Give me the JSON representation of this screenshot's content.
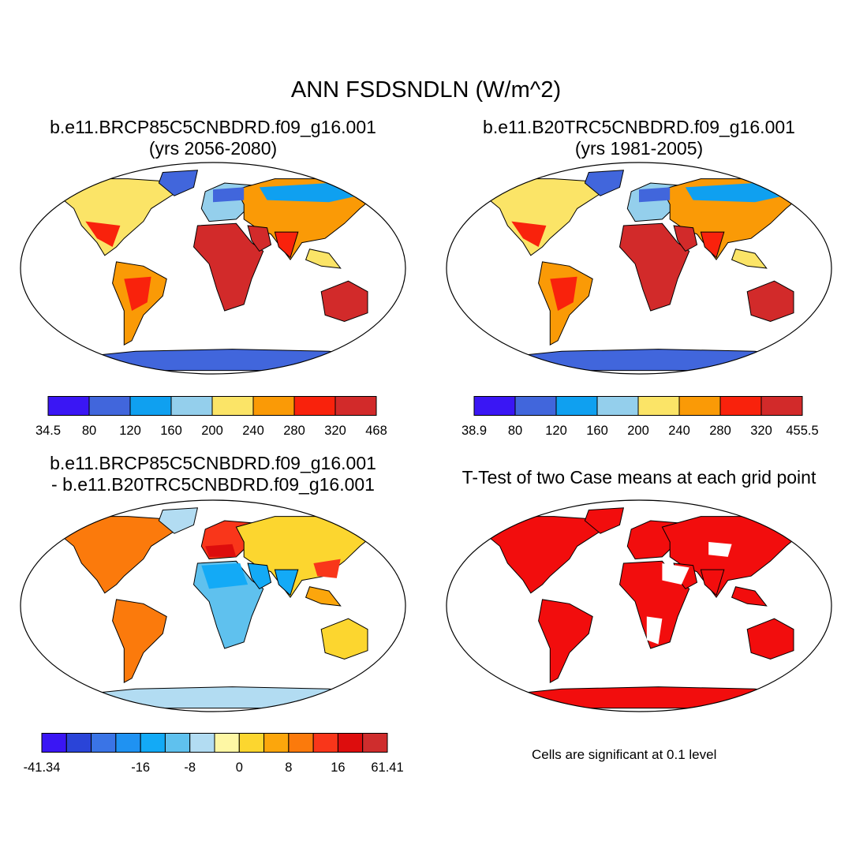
{
  "title": "ANN FSDSNDLN (W/m^2)",
  "panels": [
    {
      "line1": "b.e11.BRCP85C5CNBDRD.f09_g16.001",
      "line2": "(yrs 2056-2080)"
    },
    {
      "line1": "b.e11.B20TRC5CNBDRD.f09_g16.001",
      "line2": "(yrs 1981-2005)"
    },
    {
      "line1": "b.e11.BRCP85C5CNBDRD.f09_g16.001",
      "line2": "- b.e11.B20TRC5CNBDRD.f09_g16.001"
    },
    {
      "line1": "T-Test of two Case means at each grid point"
    }
  ],
  "colorbars": [
    {
      "colors": [
        "#3a16f4",
        "#4166dc",
        "#0fa0f0",
        "#94cfec",
        "#fbe467",
        "#fa9a06",
        "#f9220c",
        "#d22a2a"
      ],
      "labels": [
        "34.5",
        "80",
        "120",
        "160",
        "200",
        "240",
        "280",
        "320",
        "468"
      ]
    },
    {
      "colors": [
        "#3a16f4",
        "#4166dc",
        "#0fa0f0",
        "#94cfec",
        "#fbe467",
        "#fa9a06",
        "#f9220c",
        "#d22a2a"
      ],
      "labels": [
        "38.9",
        "80",
        "120",
        "160",
        "200",
        "240",
        "280",
        "320",
        "455.5"
      ]
    },
    {
      "colors": [
        "#3a16f4",
        "#2a44d8",
        "#3a74e6",
        "#1f92f2",
        "#13aaf6",
        "#5fc1ee",
        "#b2dcf2",
        "#fef7a4",
        "#fcd62f",
        "#fca60c",
        "#fb7a0c",
        "#f9361a",
        "#dd0d0d",
        "#cf2d2d"
      ],
      "labels": [
        "-41.34",
        "-16",
        "-8",
        "0",
        "8",
        "16",
        "61.41"
      ]
    }
  ],
  "note": "Cells are significant at 0.1 level",
  "map_colors": {
    "ocean": "#ffffff",
    "ttest": "#f20d0d"
  }
}
